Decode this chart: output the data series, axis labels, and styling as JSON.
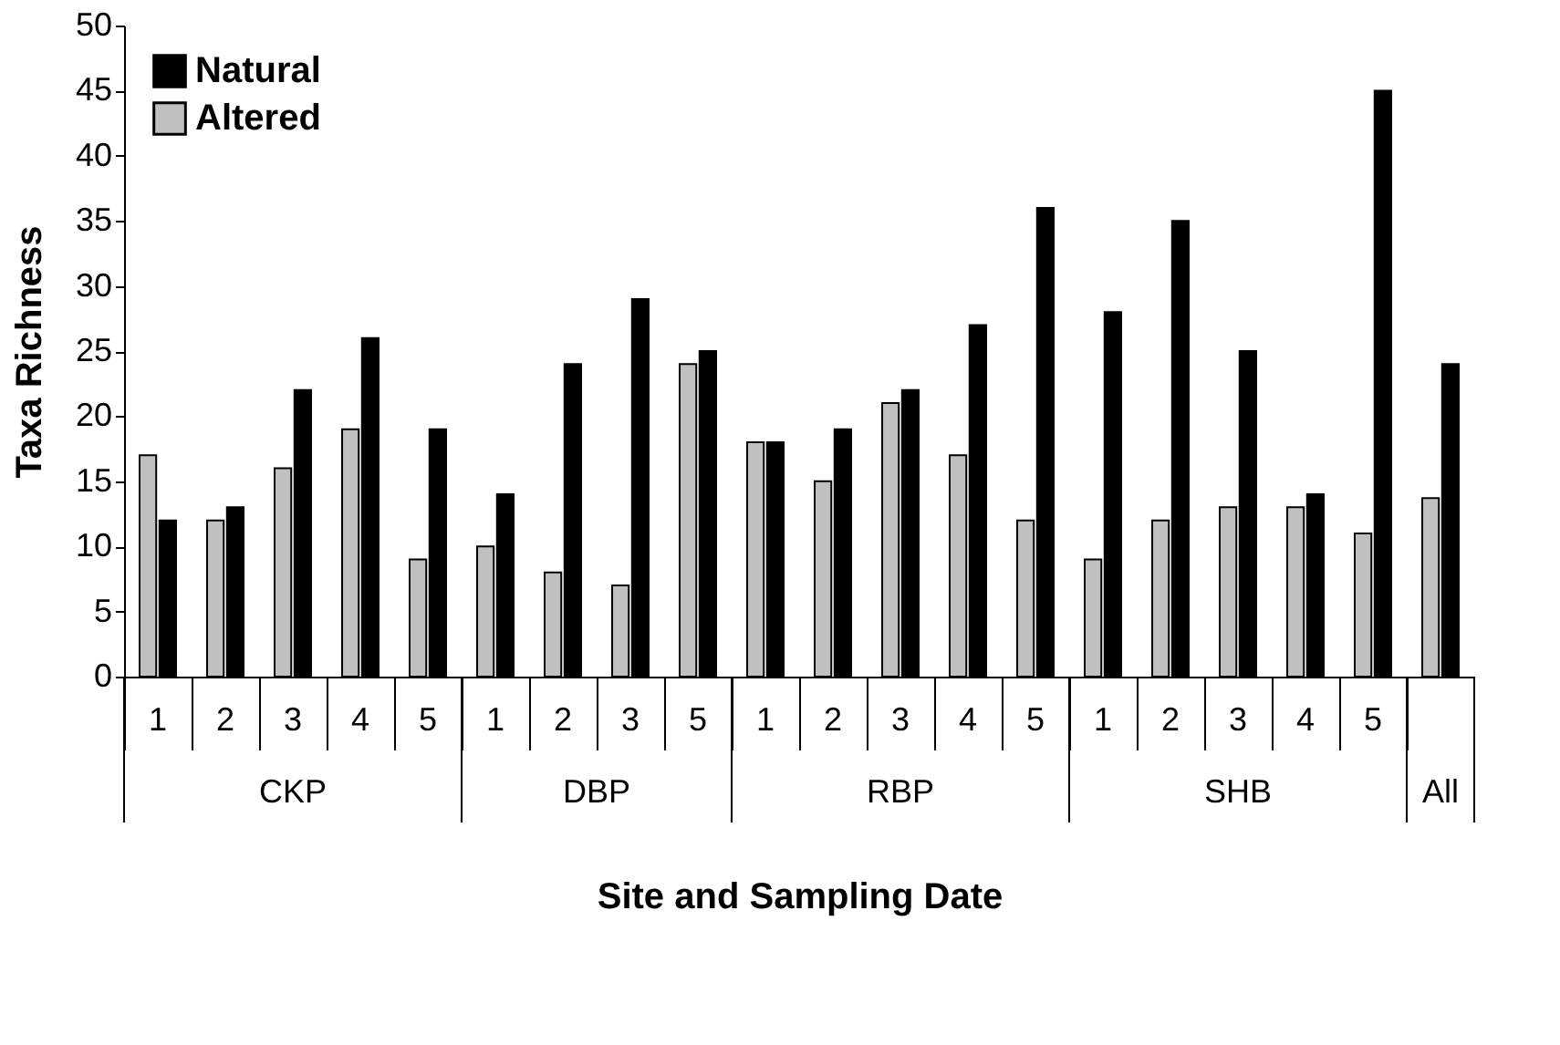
{
  "chart_data": {
    "type": "bar",
    "xlabel": "Site and Sampling Date",
    "ylabel": "Taxa Richness",
    "categories": [
      "1",
      "2",
      "3",
      "4",
      "5",
      "1",
      "2",
      "3",
      "5",
      "1",
      "2",
      "3",
      "4",
      "5",
      "1",
      "2",
      "3",
      "4",
      "5",
      null
    ],
    "series": [
      {
        "name": "Altered",
        "color": "#c0c0c0",
        "values": [
          17,
          12,
          16,
          19,
          9,
          10,
          8,
          7,
          24,
          18,
          15,
          21,
          17,
          12,
          9,
          12,
          13,
          13,
          11,
          13.7
        ]
      },
      {
        "name": "Natural",
        "color": "#000000",
        "values": [
          12,
          13,
          22,
          26,
          19,
          14,
          24,
          29,
          25,
          18,
          19,
          22,
          27,
          36,
          28,
          35,
          25,
          14,
          45,
          24
        ]
      }
    ],
    "annotations": [
      "CKP",
      "DBP",
      "RBP",
      "SHB",
      "All"
    ],
    "ylim": [
      0,
      50
    ],
    "yticks": [
      0,
      5,
      10,
      15,
      20,
      25,
      30,
      35,
      40,
      45,
      50
    ],
    "grid": false,
    "legend": "top left"
  }
}
